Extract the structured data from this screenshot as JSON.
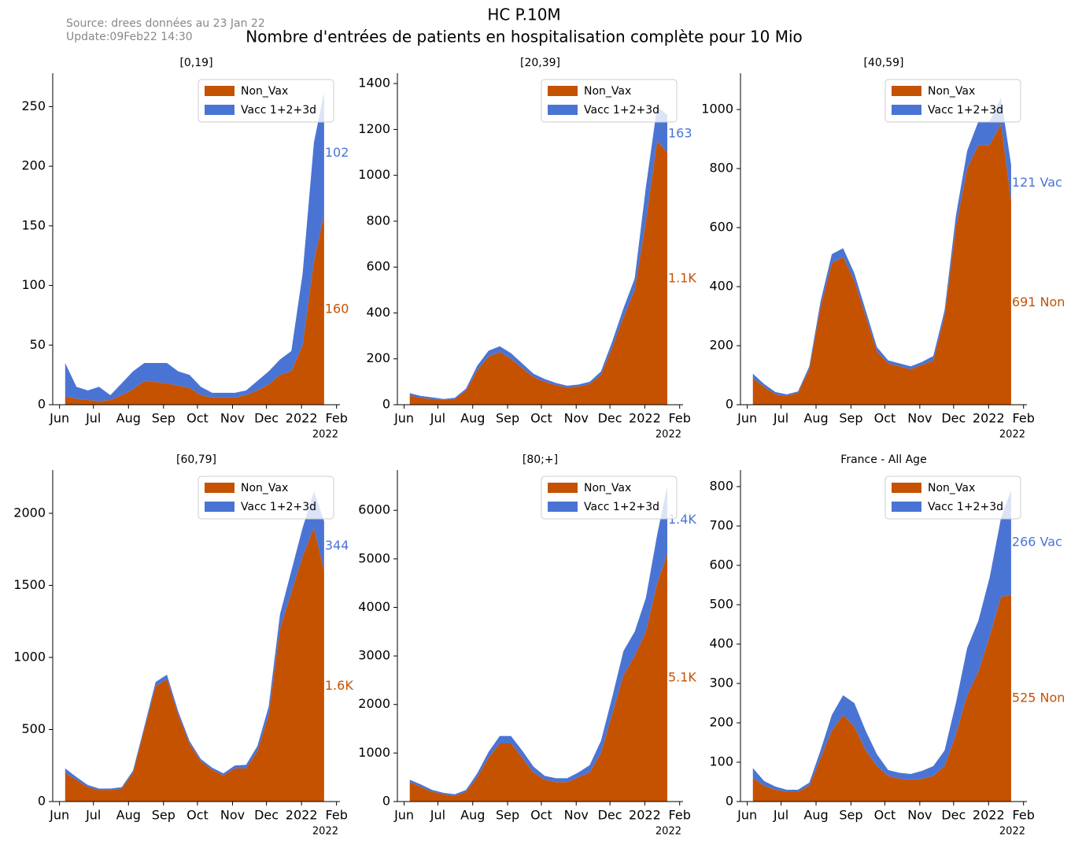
{
  "header": {
    "title": "HC P.10M",
    "subtitle": "Nombre d'entrées de patients en hospitalisation complète pour 10 Mio",
    "source": "Source: drees données au 23 Jan 22",
    "update": "Update:09Feb22 14:30"
  },
  "chart_data": [
    {
      "type": "area",
      "stacked": true,
      "title": "[0,19]",
      "legend": "upper right",
      "offset_label": "2022",
      "x": [
        5,
        15,
        25,
        35,
        45,
        55,
        65,
        75,
        85,
        95,
        105,
        115,
        125,
        135,
        145,
        155,
        165,
        175,
        185,
        195,
        205,
        215,
        225,
        234
      ],
      "xlim": [
        -6,
        248
      ],
      "xticks": [
        {
          "value": 0,
          "label": "Jun"
        },
        {
          "value": 30,
          "label": "Jul"
        },
        {
          "value": 61,
          "label": "Aug"
        },
        {
          "value": 92,
          "label": "Sep"
        },
        {
          "value": 122,
          "label": "Oct"
        },
        {
          "value": 153,
          "label": "Nov"
        },
        {
          "value": 183,
          "label": "Dec"
        },
        {
          "value": 214,
          "label": "2022"
        },
        {
          "value": 245,
          "label": "Feb"
        }
      ],
      "ylim": [
        0,
        278
      ],
      "yticks": [
        0,
        50,
        100,
        150,
        200,
        250
      ],
      "series": [
        {
          "name": "Non_Vax",
          "color": "#c55200",
          "end_label": "160",
          "values": [
            7,
            5,
            4,
            3,
            4,
            8,
            13,
            20,
            19,
            18,
            16,
            14,
            8,
            6,
            6,
            6,
            8,
            12,
            17,
            25,
            28,
            50,
            120,
            160
          ]
        },
        {
          "name": "Vacc 1+2+3d",
          "color": "#4a74d4",
          "end_label": "102",
          "values": [
            28,
            10,
            8,
            12,
            4,
            10,
            15,
            15,
            16,
            17,
            12,
            11,
            7,
            4,
            4,
            4,
            4,
            8,
            11,
            13,
            17,
            60,
            100,
            102
          ]
        }
      ]
    },
    {
      "type": "area",
      "stacked": true,
      "title": "[20,39]",
      "legend": "upper right",
      "offset_label": "2022",
      "x": [
        5,
        15,
        25,
        35,
        45,
        55,
        65,
        75,
        85,
        95,
        105,
        115,
        125,
        135,
        145,
        155,
        165,
        175,
        185,
        195,
        205,
        215,
        225,
        234
      ],
      "xlim": [
        -6,
        248
      ],
      "xticks": [
        {
          "value": 0,
          "label": "Jun"
        },
        {
          "value": 30,
          "label": "Jul"
        },
        {
          "value": 61,
          "label": "Aug"
        },
        {
          "value": 92,
          "label": "Sep"
        },
        {
          "value": 122,
          "label": "Oct"
        },
        {
          "value": 153,
          "label": "Nov"
        },
        {
          "value": 183,
          "label": "Dec"
        },
        {
          "value": 214,
          "label": "2022"
        },
        {
          "value": 245,
          "label": "Feb"
        }
      ],
      "ylim": [
        0,
        1445
      ],
      "yticks": [
        0,
        200,
        400,
        600,
        800,
        1000,
        1200,
        1400
      ],
      "series": [
        {
          "name": "Non_Vax",
          "color": "#c55200",
          "end_label": "1.1K",
          "values": [
            40,
            30,
            25,
            20,
            25,
            60,
            150,
            210,
            230,
            200,
            160,
            120,
            100,
            85,
            75,
            80,
            90,
            130,
            250,
            380,
            500,
            800,
            1150,
            1100
          ]
        },
        {
          "name": "Vacc 1+2+3d",
          "color": "#4a74d4",
          "end_label": "163",
          "values": [
            10,
            8,
            7,
            5,
            5,
            10,
            20,
            25,
            25,
            25,
            20,
            15,
            12,
            10,
            8,
            8,
            10,
            15,
            25,
            40,
            50,
            150,
            150,
            163
          ]
        }
      ]
    },
    {
      "type": "area",
      "stacked": true,
      "title": "[40,59]",
      "legend": "upper right",
      "offset_label": "2022",
      "x": [
        5,
        15,
        25,
        35,
        45,
        55,
        65,
        75,
        85,
        95,
        105,
        115,
        125,
        135,
        145,
        155,
        165,
        175,
        185,
        195,
        205,
        215,
        225,
        234
      ],
      "xlim": [
        -6,
        248
      ],
      "xticks": [
        {
          "value": 0,
          "label": "Jun"
        },
        {
          "value": 30,
          "label": "Jul"
        },
        {
          "value": 61,
          "label": "Aug"
        },
        {
          "value": 92,
          "label": "Sep"
        },
        {
          "value": 122,
          "label": "Oct"
        },
        {
          "value": 153,
          "label": "Nov"
        },
        {
          "value": 183,
          "label": "Dec"
        },
        {
          "value": 214,
          "label": "2022"
        },
        {
          "value": 245,
          "label": "Feb"
        }
      ],
      "ylim": [
        0,
        1123
      ],
      "yticks": [
        0,
        200,
        400,
        600,
        800,
        1000
      ],
      "series": [
        {
          "name": "Non_Vax",
          "color": "#c55200",
          "end_label": "691 Non",
          "values": [
            90,
            60,
            35,
            30,
            40,
            120,
            330,
            480,
            500,
            420,
            300,
            180,
            140,
            130,
            120,
            135,
            150,
            300,
            600,
            800,
            880,
            880,
            950,
            691
          ]
        },
        {
          "name": "Vacc 1+2+3d",
          "color": "#4a74d4",
          "end_label": "121 Vac",
          "values": [
            15,
            10,
            8,
            5,
            5,
            10,
            20,
            30,
            30,
            25,
            20,
            15,
            10,
            10,
            10,
            10,
            15,
            20,
            40,
            60,
            80,
            80,
            90,
            121
          ]
        }
      ]
    },
    {
      "type": "area",
      "stacked": true,
      "title": "[60,79]",
      "legend": "upper right",
      "offset_label": "2022",
      "x": [
        5,
        15,
        25,
        35,
        45,
        55,
        65,
        75,
        85,
        95,
        105,
        115,
        125,
        135,
        145,
        155,
        165,
        175,
        185,
        195,
        205,
        215,
        225,
        234
      ],
      "xlim": [
        -6,
        248
      ],
      "xticks": [
        {
          "value": 0,
          "label": "Jun"
        },
        {
          "value": 30,
          "label": "Jul"
        },
        {
          "value": 61,
          "label": "Aug"
        },
        {
          "value": 92,
          "label": "Sep"
        },
        {
          "value": 122,
          "label": "Oct"
        },
        {
          "value": 153,
          "label": "Nov"
        },
        {
          "value": 183,
          "label": "Dec"
        },
        {
          "value": 214,
          "label": "2022"
        },
        {
          "value": 245,
          "label": "Feb"
        }
      ],
      "ylim": [
        0,
        2300
      ],
      "yticks": [
        0,
        500,
        1000,
        1500,
        2000
      ],
      "series": [
        {
          "name": "Non_Vax",
          "color": "#c55200",
          "end_label": "1.6K",
          "values": [
            200,
            150,
            100,
            80,
            80,
            90,
            200,
            500,
            800,
            850,
            600,
            400,
            280,
            220,
            180,
            230,
            230,
            350,
            600,
            1200,
            1450,
            1700,
            1900,
            1600
          ]
        },
        {
          "name": "Vacc 1+2+3d",
          "color": "#4a74d4",
          "end_label": "344",
          "values": [
            30,
            20,
            15,
            10,
            10,
            10,
            15,
            20,
            30,
            30,
            25,
            20,
            15,
            15,
            15,
            20,
            25,
            35,
            60,
            100,
            150,
            200,
            250,
            344
          ]
        }
      ]
    },
    {
      "type": "area",
      "stacked": true,
      "title": "[80;+]",
      "legend": "upper right",
      "offset_label": "2022",
      "x": [
        5,
        15,
        25,
        35,
        45,
        55,
        65,
        75,
        85,
        95,
        105,
        115,
        125,
        135,
        145,
        155,
        165,
        175,
        185,
        195,
        205,
        215,
        225,
        234
      ],
      "xlim": [
        -6,
        248
      ],
      "xticks": [
        {
          "value": 0,
          "label": "Jun"
        },
        {
          "value": 30,
          "label": "Jul"
        },
        {
          "value": 61,
          "label": "Aug"
        },
        {
          "value": 92,
          "label": "Sep"
        },
        {
          "value": 122,
          "label": "Oct"
        },
        {
          "value": 153,
          "label": "Nov"
        },
        {
          "value": 183,
          "label": "Dec"
        },
        {
          "value": 214,
          "label": "2022"
        },
        {
          "value": 245,
          "label": "Feb"
        }
      ],
      "ylim": [
        0,
        6830
      ],
      "yticks": [
        0,
        1000,
        2000,
        3000,
        4000,
        5000,
        6000
      ],
      "series": [
        {
          "name": "Non_Vax",
          "color": "#c55200",
          "end_label": "5.1K",
          "values": [
            400,
            300,
            200,
            150,
            120,
            200,
            500,
            900,
            1200,
            1200,
            900,
            600,
            450,
            400,
            400,
            500,
            600,
            1000,
            1800,
            2600,
            3000,
            3500,
            4500,
            5100
          ]
        },
        {
          "name": "Vacc 1+2+3d",
          "color": "#4a74d4",
          "end_label": "1.4K",
          "values": [
            50,
            50,
            40,
            30,
            30,
            40,
            80,
            120,
            150,
            150,
            150,
            120,
            80,
            80,
            80,
            100,
            150,
            250,
            350,
            500,
            500,
            700,
            1000,
            1400
          ]
        }
      ]
    },
    {
      "type": "area",
      "stacked": true,
      "title": "France - All Age",
      "legend": "upper right",
      "offset_label": "2022",
      "x": [
        5,
        15,
        25,
        35,
        45,
        55,
        65,
        75,
        85,
        95,
        105,
        115,
        125,
        135,
        145,
        155,
        165,
        175,
        185,
        195,
        205,
        215,
        225,
        234
      ],
      "xlim": [
        -6,
        248
      ],
      "xticks": [
        {
          "value": 0,
          "label": "Jun"
        },
        {
          "value": 30,
          "label": "Jul"
        },
        {
          "value": 61,
          "label": "Aug"
        },
        {
          "value": 92,
          "label": "Sep"
        },
        {
          "value": 122,
          "label": "Oct"
        },
        {
          "value": 153,
          "label": "Nov"
        },
        {
          "value": 183,
          "label": "Dec"
        },
        {
          "value": 214,
          "label": "2022"
        },
        {
          "value": 245,
          "label": "Feb"
        }
      ],
      "ylim": [
        0,
        842
      ],
      "yticks": [
        0,
        100,
        200,
        300,
        400,
        500,
        600,
        700,
        800
      ],
      "series": [
        {
          "name": "Non_Vax",
          "color": "#c55200",
          "end_label": "525 Non",
          "values": [
            60,
            40,
            30,
            25,
            25,
            40,
            110,
            180,
            220,
            190,
            130,
            90,
            65,
            58,
            55,
            58,
            65,
            90,
            170,
            270,
            330,
            420,
            520,
            525
          ]
        },
        {
          "name": "Vacc 1+2+3d",
          "color": "#4a74d4",
          "end_label": "266 Vac",
          "values": [
            25,
            12,
            8,
            5,
            5,
            8,
            20,
            40,
            50,
            60,
            50,
            30,
            15,
            15,
            15,
            20,
            25,
            40,
            80,
            120,
            130,
            150,
            200,
            266
          ]
        }
      ]
    }
  ]
}
